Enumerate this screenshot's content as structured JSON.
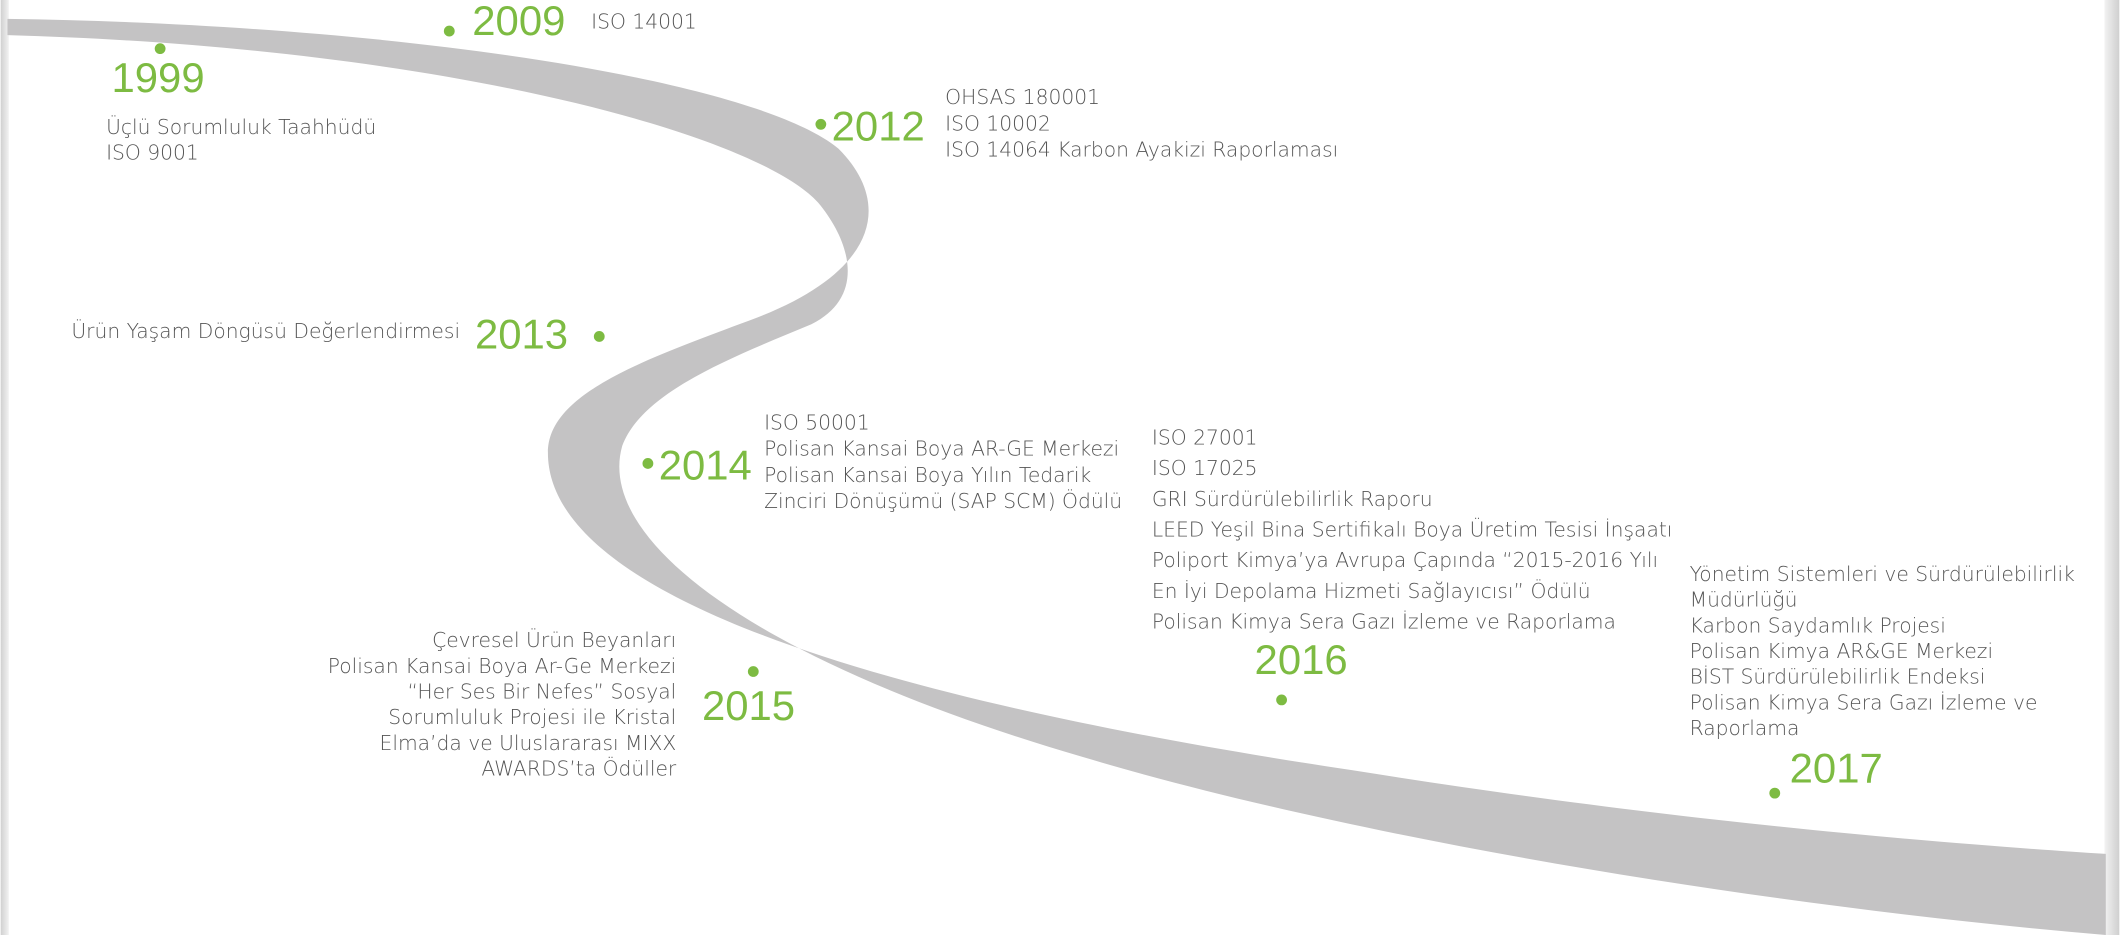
{
  "milestones": [
    {
      "year": "1999",
      "items": [
        "Üçlü Sorumluluk Taahhüdü",
        "ISO 9001"
      ]
    },
    {
      "year": "2009",
      "items": [
        "ISO 14001"
      ]
    },
    {
      "year": "2012",
      "items": [
        "OHSAS 180001",
        "ISO 10002",
        "ISO 14064 Karbon Ayakizi Raporlaması"
      ]
    },
    {
      "year": "2013",
      "items": [
        "Ürün Yaşam Döngüsü Değerlendirmesi"
      ]
    },
    {
      "year": "2014",
      "items": [
        "ISO 50001",
        "Polisan Kansai Boya AR-GE Merkezi",
        "Polisan Kansai Boya Yılın Tedarik",
        "Zinciri Dönüşümü (SAP SCM) Ödülü"
      ]
    },
    {
      "year": "2015",
      "items": [
        "Çevresel Ürün Beyanları",
        "Polisan Kansai Boya Ar-Ge Merkezi",
        "“Her Ses Bir Nefes” Sosyal",
        "Sorumluluk Projesi ile Kristal",
        "Elma’da ve Uluslararası MIXX",
        "AWARDS’ta Ödüller"
      ]
    },
    {
      "year": "2016",
      "items": [
        "ISO 27001",
        "ISO 17025",
        "GRI Sürdürülebilirlik Raporu",
        "LEED Yeşil Bina Sertifikalı Boya Üretim Tesisi İnşaatı",
        "Poliport Kimya’ya Avrupa Çapında “2015-2016 Yılı",
        "En İyi Depolama Hizmeti Sağlayıcısı” Ödülü",
        "Polisan Kimya Sera Gazı İzleme ve Raporlama"
      ]
    },
    {
      "year": "2017",
      "items": [
        "Yönetim Sistemleri ve Sürdürülebilirlik",
        "Müdürlüğü",
        "Karbon Saydamlık Projesi",
        "Polisan Kimya AR&GE Merkezi",
        "BİST Sürdürülebilirlik Endeksi",
        "Polisan Kimya Sera Gazı İzleme ve",
        "Raporlama"
      ]
    }
  ]
}
